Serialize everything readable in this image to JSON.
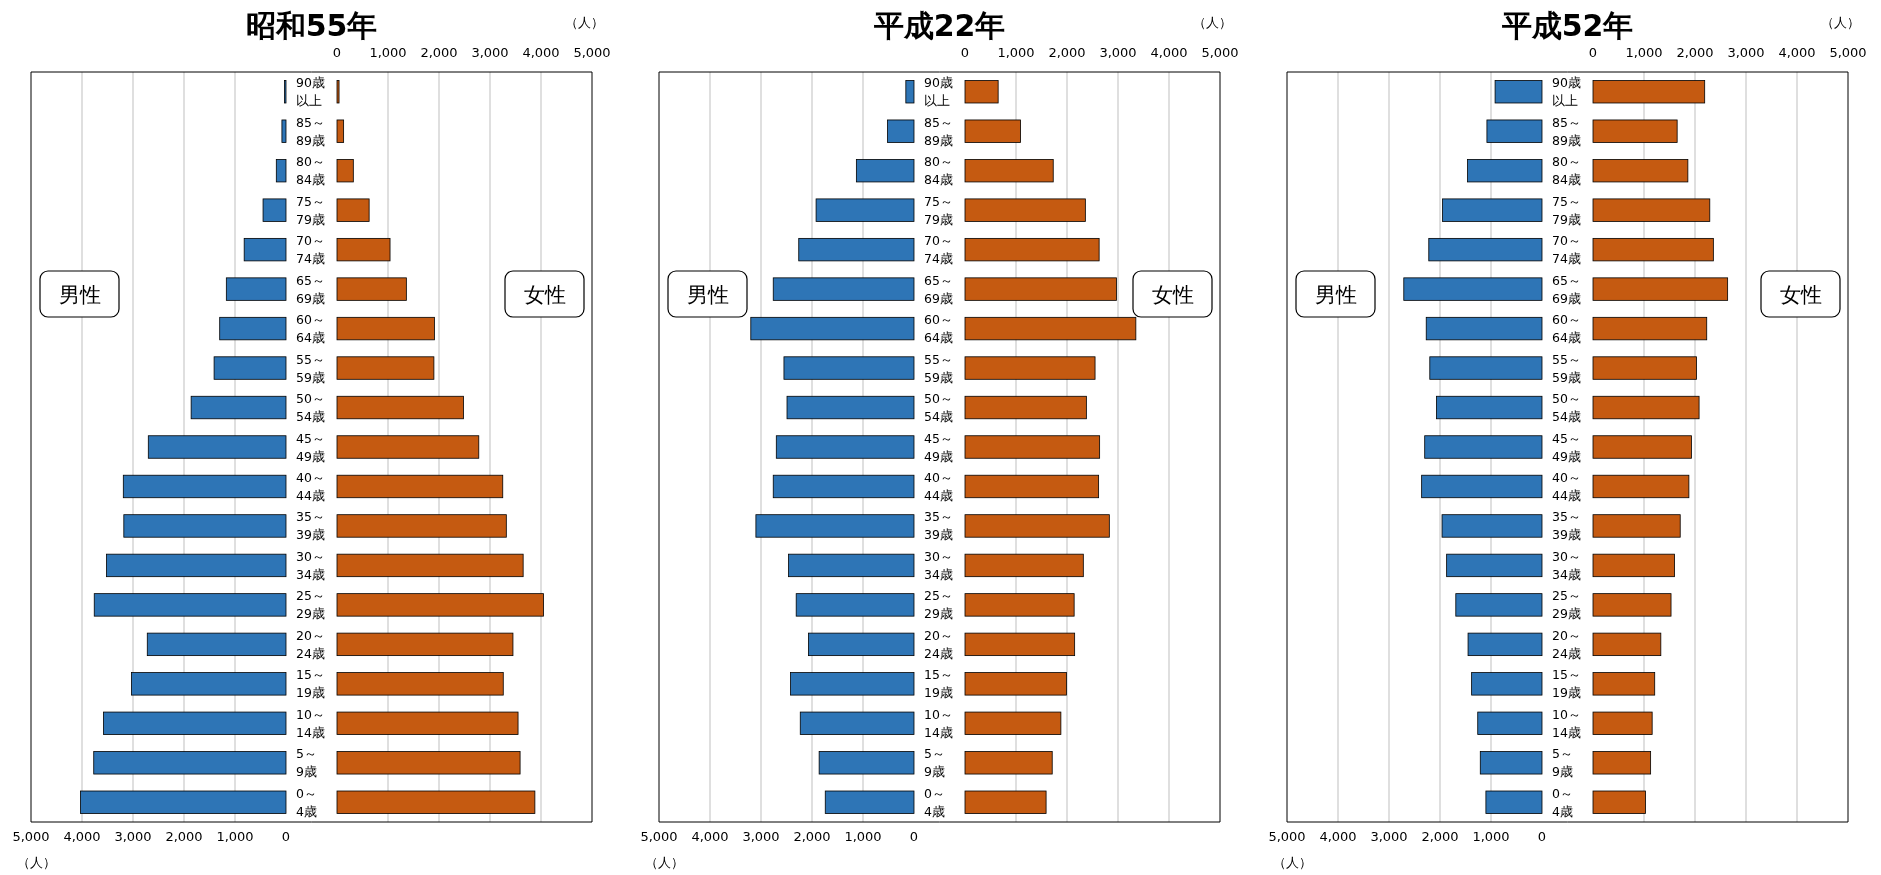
{
  "chart_data": [
    {
      "type": "bar",
      "orientation": "horizontal",
      "title": "昭和55年",
      "xlabel": "（人）",
      "categories": [
        "90歳以上",
        "85～89歳",
        "80～84歳",
        "75～79歳",
        "70～74歳",
        "65～69歳",
        "60～64歳",
        "55～59歳",
        "50～54歳",
        "45～49歳",
        "40～44歳",
        "35～39歳",
        "30～34歳",
        "25～29歳",
        "20～24歳",
        "15～19歳",
        "10～14歳",
        "5～9歳",
        "0～4歳"
      ],
      "xlim": [
        5000,
        0
      ],
      "xticks": [
        {
          "value": 5000,
          "label": "5,000"
        },
        {
          "value": 4000,
          "label": "4,000"
        },
        {
          "value": 3000,
          "label": "3,000"
        },
        {
          "value": 2000,
          "label": "2,000"
        },
        {
          "value": 1000,
          "label": "1,000"
        },
        {
          "value": 0,
          "label": "0"
        }
      ],
      "grid": "x",
      "series": [
        {
          "name": "男性",
          "color": "#2e75b6",
          "values": [
            30,
            80,
            190,
            450,
            820,
            1170,
            1300,
            1410,
            1860,
            2700,
            3190,
            3180,
            3520,
            3760,
            2720,
            3030,
            3580,
            3770,
            4030
          ]
        }
      ]
    },
    {
      "type": "bar",
      "orientation": "horizontal",
      "xlabel": "（人）",
      "categories": [
        null,
        null,
        null,
        null,
        null,
        null,
        null,
        null,
        null,
        null,
        null,
        null,
        null,
        null,
        null,
        null,
        null,
        null,
        null
      ],
      "xlim": [
        0,
        5000
      ],
      "xticks": [
        {
          "value": 0,
          "label": "0"
        },
        {
          "value": 1000,
          "label": "1,000"
        },
        {
          "value": 2000,
          "label": "2,000"
        },
        {
          "value": 3000,
          "label": "3,000"
        },
        {
          "value": 4000,
          "label": "4,000"
        },
        {
          "value": 5000,
          "label": "5,000"
        }
      ],
      "grid": "x",
      "tick_labels": "x",
      "series": [
        {
          "name": "女性",
          "color": "#c55a11",
          "values": [
            40,
            130,
            320,
            630,
            1040,
            1360,
            1910,
            1900,
            2480,
            2780,
            3250,
            3320,
            3650,
            4050,
            3450,
            3260,
            3550,
            3590,
            3880
          ]
        }
      ]
    },
    {
      "type": "bar",
      "orientation": "horizontal",
      "title": "平成22年",
      "xlabel": "（人）",
      "categories": [
        "90歳以上",
        "85～89歳",
        "80～84歳",
        "75～79歳",
        "70～74歳",
        "65～69歳",
        "60～64歳",
        "55～59歳",
        "50～54歳",
        "45～49歳",
        "40～44歳",
        "35～39歳",
        "30～34歳",
        "25～29歳",
        "20～24歳",
        "15～19歳",
        "10～14歳",
        "5～9歳",
        "0～4歳"
      ],
      "xlim": [
        5000,
        0
      ],
      "xticks": [
        {
          "value": 5000,
          "label": "5,000"
        },
        {
          "value": 4000,
          "label": "4,000"
        },
        {
          "value": 3000,
          "label": "3,000"
        },
        {
          "value": 2000,
          "label": "2,000"
        },
        {
          "value": 1000,
          "label": "1,000"
        },
        {
          "value": 0,
          "label": "0"
        }
      ],
      "grid": "x",
      "series": [
        {
          "name": "男性",
          "color": "#2e75b6",
          "values": [
            160,
            520,
            1130,
            1920,
            2260,
            2760,
            3200,
            2550,
            2490,
            2700,
            2760,
            3100,
            2460,
            2310,
            2070,
            2420,
            2230,
            1860,
            1740
          ]
        }
      ]
    },
    {
      "type": "bar",
      "orientation": "horizontal",
      "xlabel": "（人）",
      "categories": [
        null,
        null,
        null,
        null,
        null,
        null,
        null,
        null,
        null,
        null,
        null,
        null,
        null,
        null,
        null,
        null,
        null,
        null,
        null
      ],
      "xlim": [
        0,
        5000
      ],
      "xticks": [
        {
          "value": 0,
          "label": "0"
        },
        {
          "value": 1000,
          "label": "1,000"
        },
        {
          "value": 2000,
          "label": "2,000"
        },
        {
          "value": 3000,
          "label": "3,000"
        },
        {
          "value": 4000,
          "label": "4,000"
        },
        {
          "value": 5000,
          "label": "5,000"
        }
      ],
      "grid": "x",
      "tick_labels": "x",
      "series": [
        {
          "name": "女性",
          "color": "#c55a11",
          "values": [
            650,
            1090,
            1730,
            2360,
            2630,
            2970,
            3350,
            2550,
            2380,
            2640,
            2620,
            2830,
            2320,
            2140,
            2150,
            1990,
            1880,
            1710,
            1590
          ]
        }
      ]
    },
    {
      "type": "bar",
      "orientation": "horizontal",
      "title": "平成52年",
      "xlabel": "（人）",
      "categories": [
        "90歳以上",
        "85～89歳",
        "80～84歳",
        "75～79歳",
        "70～74歳",
        "65～69歳",
        "60～64歳",
        "55～59歳",
        "50～54歳",
        "45～49歳",
        "40～44歳",
        "35～39歳",
        "30～34歳",
        "25～29歳",
        "20～24歳",
        "15～19歳",
        "10～14歳",
        "5～9歳",
        "0～4歳"
      ],
      "xlim": [
        5000,
        0
      ],
      "xticks": [
        {
          "value": 5000,
          "label": "5,000"
        },
        {
          "value": 4000,
          "label": "4,000"
        },
        {
          "value": 3000,
          "label": "3,000"
        },
        {
          "value": 2000,
          "label": "2,000"
        },
        {
          "value": 1000,
          "label": "1,000"
        },
        {
          "value": 0,
          "label": "0"
        }
      ],
      "grid": "x",
      "series": [
        {
          "name": "男性",
          "color": "#2e75b6",
          "values": [
            920,
            1080,
            1460,
            1950,
            2220,
            2710,
            2270,
            2200,
            2070,
            2300,
            2360,
            1960,
            1870,
            1690,
            1450,
            1380,
            1260,
            1210,
            1100
          ]
        }
      ]
    },
    {
      "type": "bar",
      "orientation": "horizontal",
      "xlabel": "（人）",
      "categories": [
        null,
        null,
        null,
        null,
        null,
        null,
        null,
        null,
        null,
        null,
        null,
        null,
        null,
        null,
        null,
        null,
        null,
        null,
        null
      ],
      "xlim": [
        0,
        5000
      ],
      "xticks": [
        {
          "value": 0,
          "label": "0"
        },
        {
          "value": 1000,
          "label": "1,000"
        },
        {
          "value": 2000,
          "label": "2,000"
        },
        {
          "value": 3000,
          "label": "3,000"
        },
        {
          "value": 4000,
          "label": "4,000"
        },
        {
          "value": 5000,
          "label": "5,000"
        }
      ],
      "grid": "x",
      "tick_labels": "x",
      "series": [
        {
          "name": "女性",
          "color": "#c55a11",
          "values": [
            2190,
            1650,
            1860,
            2290,
            2360,
            2640,
            2230,
            2030,
            2080,
            1930,
            1880,
            1710,
            1600,
            1530,
            1330,
            1210,
            1160,
            1130,
            1030
          ]
        }
      ]
    }
  ]
}
